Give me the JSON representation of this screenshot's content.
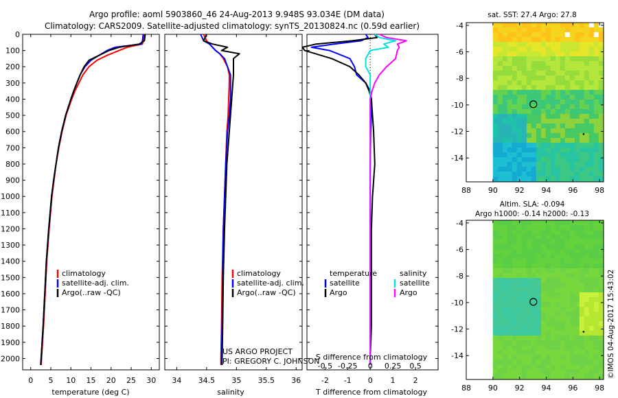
{
  "header": {
    "title_line1": "Argo profile: aoml 5903860_46 24-Aug-2013 9.948S 93.034E (DM data)",
    "title_line2": "Climatology: CARS2009. Satellite-adjusted climatology: synTS_20130824.nc (0.59d earlier)"
  },
  "colors": {
    "climatology": "#ff0000",
    "satellite_adj": "#0000ff",
    "argo": "#000000",
    "salinity_sat": "#00e0e0",
    "salinity_argo": "#ff00ff"
  },
  "depth_axis": {
    "ylim": [
      0,
      2070
    ],
    "ticks": [
      "0",
      "100",
      "200",
      "300",
      "400",
      "500",
      "600",
      "700",
      "800",
      "900",
      "1000",
      "1100",
      "1200",
      "1300",
      "1400",
      "1500",
      "1600",
      "1700",
      "1800",
      "1900",
      "2000"
    ]
  },
  "chart_data": [
    {
      "type": "line",
      "title": "temperature profile",
      "xlabel": "temperature (deg C)",
      "ylabel": "",
      "xlim": [
        -2,
        32
      ],
      "ylim": [
        0,
        2070
      ],
      "x_ticks": [
        "0",
        "5",
        "10",
        "15",
        "20",
        "25",
        "30"
      ],
      "legend": [
        "climatology",
        "satellite-adj. clim.",
        "Argo(..raw -QC)"
      ],
      "depth": [
        0,
        40,
        60,
        80,
        100,
        130,
        160,
        200,
        250,
        300,
        350,
        400,
        500,
        600,
        700,
        800,
        900,
        1000,
        1200,
        1400,
        1600,
        1800,
        2000,
        2040
      ],
      "series": [
        {
          "name": "climatology",
          "values": [
            28.2,
            28.0,
            27.8,
            24.0,
            22.0,
            19.0,
            16.5,
            14.5,
            13.0,
            12.0,
            11.0,
            10.2,
            8.8,
            7.8,
            7.0,
            6.3,
            5.8,
            5.3,
            4.6,
            4.0,
            3.6,
            3.2,
            2.7,
            2.6
          ]
        },
        {
          "name": "satellite-adj. clim.",
          "values": [
            28.0,
            27.8,
            27.5,
            21.0,
            19.0,
            17.0,
            15.0,
            13.5,
            12.3,
            11.5,
            10.7,
            10.0,
            8.7,
            7.7,
            6.9,
            6.3,
            5.7,
            5.2,
            4.5,
            3.9,
            3.5,
            3.1,
            2.6,
            2.5
          ]
        },
        {
          "name": "Argo(..raw -QC)",
          "values": [
            28.5,
            28.3,
            27.0,
            22.0,
            19.5,
            17.0,
            14.5,
            13.3,
            12.3,
            11.5,
            10.7,
            10.0,
            8.7,
            7.7,
            6.9,
            6.3,
            5.7,
            5.2,
            4.5,
            3.9,
            3.5,
            3.1,
            2.6,
            2.5
          ]
        }
      ]
    },
    {
      "type": "line",
      "title": "salinity profile",
      "xlabel": "salinity",
      "ylabel": "",
      "xlim": [
        33.8,
        36.1
      ],
      "ylim": [
        0,
        2070
      ],
      "x_ticks": [
        "34",
        "34.5",
        "35",
        "35.5",
        "36"
      ],
      "legend": [
        "climatology",
        "satellite-adj. clim.",
        "Argo(..raw -QC)"
      ],
      "annotations": [
        "US ARGO PROJECT",
        "PI: GREGORY C. JOHNSON"
      ],
      "depth": [
        0,
        40,
        60,
        80,
        100,
        120,
        150,
        200,
        250,
        300,
        400,
        500,
        600,
        800,
        1000,
        1200,
        1500,
        1800,
        2000,
        2040
      ],
      "series": [
        {
          "name": "climatology",
          "values": [
            34.45,
            34.5,
            34.55,
            34.6,
            34.65,
            34.72,
            34.78,
            34.85,
            34.88,
            34.88,
            34.87,
            34.86,
            34.84,
            34.82,
            34.8,
            34.78,
            34.76,
            34.75,
            34.74,
            34.74
          ]
        },
        {
          "name": "satellite-adj. clim.",
          "values": [
            34.4,
            34.45,
            34.55,
            34.6,
            34.65,
            34.72,
            34.8,
            34.85,
            34.9,
            34.9,
            34.9,
            34.88,
            34.85,
            34.82,
            34.8,
            34.78,
            34.77,
            34.76,
            34.75,
            34.75
          ]
        },
        {
          "name": "Argo(..raw -QC)",
          "values": [
            34.5,
            34.45,
            34.6,
            34.85,
            34.75,
            35.05,
            34.95,
            34.95,
            34.95,
            34.94,
            34.92,
            34.9,
            34.88,
            34.84,
            34.82,
            34.8,
            34.78,
            34.77,
            34.76,
            34.76
          ]
        }
      ]
    },
    {
      "type": "line",
      "title": "difference from climatology",
      "xlabel": "T difference from climatology",
      "xlabel_top": "S difference from climatology",
      "xlim": [
        -2.8,
        3.0
      ],
      "ylim": [
        0,
        2070
      ],
      "x_ticks": [
        "-2",
        "-1",
        "0",
        "1",
        "2"
      ],
      "x_ticks_top": [
        "-0.5",
        "-0.25",
        "0",
        "0.25",
        "0.5"
      ],
      "legend_temperature_title": "temperature",
      "legend_salinity_title": "salinity",
      "legend": [
        "satellite",
        "Argo",
        "satellite",
        "Argo"
      ],
      "depth": [
        0,
        20,
        40,
        60,
        80,
        100,
        150,
        200,
        250,
        300,
        350,
        400,
        500,
        600,
        800,
        1000,
        1200,
        1500,
        1800,
        2000,
        2040
      ],
      "series": [
        {
          "name": "T satellite",
          "values": [
            -0.2,
            -0.1,
            -0.4,
            -1.6,
            -2.6,
            -1.8,
            -0.9,
            -0.7,
            -0.6,
            -0.2,
            0.0,
            0.05,
            0.05,
            0.02,
            0.0,
            0.0,
            0.0,
            0.0,
            0.0,
            0.0,
            0.0
          ]
        },
        {
          "name": "T Argo",
          "values": [
            0.2,
            0.3,
            -0.8,
            -2.4,
            -3.0,
            -2.9,
            -1.7,
            -0.9,
            -0.5,
            -0.2,
            -0.05,
            0.05,
            0.1,
            0.15,
            0.2,
            0.1,
            0.05,
            0.05,
            0.05,
            0.0,
            0.0
          ]
        },
        {
          "name": "S satellite",
          "values": [
            0.05,
            0.1,
            0.28,
            0.15,
            0.2,
            0.0,
            -0.05,
            -0.05,
            0.0,
            0.0,
            0.0,
            0.0,
            0.0,
            0.0,
            0.0,
            0.0,
            0.0,
            0.0,
            0.0,
            0.0,
            0.0
          ]
        },
        {
          "name": "S Argo",
          "values": [
            0.1,
            0.18,
            0.4,
            0.3,
            0.32,
            0.3,
            0.28,
            0.18,
            0.1,
            0.05,
            0.02,
            0.0,
            0.0,
            0.0,
            0.0,
            0.0,
            0.0,
            0.0,
            0.0,
            0.0,
            0.0
          ]
        }
      ]
    },
    {
      "type": "heatmap",
      "title": "sat. SST: 27.4 Argo: 27.8",
      "x_ticks": [
        "88",
        "90",
        "92",
        "94",
        "96",
        "98"
      ],
      "y_ticks": [
        "-4",
        "-6",
        "-8",
        "-10",
        "-12",
        "-14"
      ],
      "xlim": [
        88,
        98.3
      ],
      "ylim": [
        -15.8,
        -3.8
      ],
      "argo_position": [
        93.034,
        -9.948
      ]
    },
    {
      "type": "heatmap",
      "title_line1": "Altim. SLA: -0.094",
      "title_line2": "Argo h1000: -0.14 h2000: -0.13",
      "x_ticks": [
        "88",
        "90",
        "92",
        "94",
        "96",
        "98"
      ],
      "y_ticks": [
        "-4",
        "-6",
        "-8",
        "-10",
        "-12",
        "-14"
      ],
      "xlim": [
        88,
        98.3
      ],
      "ylim": [
        -15.8,
        -3.8
      ],
      "argo_position": [
        93.034,
        -9.948
      ]
    }
  ],
  "footer": {
    "stamp": "©IMOS 04-Aug-2017 15:43:02"
  }
}
